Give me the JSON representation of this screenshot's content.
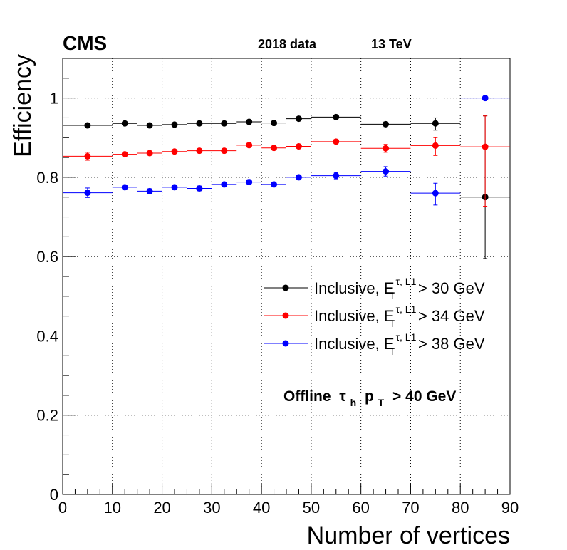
{
  "header": {
    "experiment": "CMS",
    "dataset": "2018 data",
    "energy": "13 TeV"
  },
  "chart_data": {
    "type": "scatter",
    "title": "",
    "xlabel": "Number of vertices",
    "ylabel": "Efficiency",
    "xlim": [
      0,
      90
    ],
    "ylim": [
      0,
      1.1
    ],
    "grid": true,
    "legend_placement": "right",
    "x_ticks": [
      "0",
      "10",
      "20",
      "30",
      "40",
      "50",
      "60",
      "70",
      "80",
      "90"
    ],
    "y_ticks": [
      "0",
      "0.2",
      "0.4",
      "0.6",
      "0.8",
      "1"
    ],
    "annotation": {
      "prefix": "Offline",
      "symbol": "τ",
      "symbol_sub": "h",
      "var": "p",
      "var_sub": "T",
      "cut": "> 40 GeV"
    },
    "series": [
      {
        "name": "Inclusive, E_T^{τ, L1} > 30 GeV",
        "legend_prefix": "Inclusive, E",
        "legend_sub": "T",
        "legend_sup": "τ, L1",
        "legend_suffix": "> 30 GeV",
        "color": "#000000",
        "points": [
          {
            "x": 5,
            "xlo": 0,
            "xhi": 10,
            "y": 0.931,
            "elo": 0.005,
            "ehi": 0.005
          },
          {
            "x": 12.5,
            "xlo": 10,
            "xhi": 15,
            "y": 0.936,
            "elo": 0.004,
            "ehi": 0.004
          },
          {
            "x": 17.5,
            "xlo": 15,
            "xhi": 20,
            "y": 0.931,
            "elo": 0.004,
            "ehi": 0.004
          },
          {
            "x": 22.5,
            "xlo": 20,
            "xhi": 25,
            "y": 0.933,
            "elo": 0.004,
            "ehi": 0.004
          },
          {
            "x": 27.5,
            "xlo": 25,
            "xhi": 30,
            "y": 0.936,
            "elo": 0.004,
            "ehi": 0.004
          },
          {
            "x": 32.5,
            "xlo": 30,
            "xhi": 35,
            "y": 0.936,
            "elo": 0.004,
            "ehi": 0.004
          },
          {
            "x": 37.5,
            "xlo": 35,
            "xhi": 40,
            "y": 0.94,
            "elo": 0.004,
            "ehi": 0.004
          },
          {
            "x": 42.5,
            "xlo": 40,
            "xhi": 45,
            "y": 0.937,
            "elo": 0.004,
            "ehi": 0.004
          },
          {
            "x": 47.5,
            "xlo": 45,
            "xhi": 50,
            "y": 0.948,
            "elo": 0.004,
            "ehi": 0.004
          },
          {
            "x": 55,
            "xlo": 50,
            "xhi": 60,
            "y": 0.952,
            "elo": 0.004,
            "ehi": 0.004
          },
          {
            "x": 65,
            "xlo": 60,
            "xhi": 70,
            "y": 0.934,
            "elo": 0.006,
            "ehi": 0.006
          },
          {
            "x": 75,
            "xlo": 70,
            "xhi": 80,
            "y": 0.936,
            "elo": 0.017,
            "ehi": 0.014
          },
          {
            "x": 85,
            "xlo": 80,
            "xhi": 90,
            "y": 0.75,
            "elo": 0.155,
            "ehi": 0.205
          }
        ]
      },
      {
        "name": "Inclusive, E_T^{τ, L1} > 34 GeV",
        "legend_prefix": "Inclusive, E",
        "legend_sub": "T",
        "legend_sup": "τ, L1",
        "legend_suffix": "> 34 GeV",
        "color": "#ff0000",
        "points": [
          {
            "x": 5,
            "xlo": 0,
            "xhi": 10,
            "y": 0.853,
            "elo": 0.01,
            "ehi": 0.01
          },
          {
            "x": 12.5,
            "xlo": 10,
            "xhi": 15,
            "y": 0.858,
            "elo": 0.005,
            "ehi": 0.005
          },
          {
            "x": 17.5,
            "xlo": 15,
            "xhi": 20,
            "y": 0.861,
            "elo": 0.005,
            "ehi": 0.005
          },
          {
            "x": 22.5,
            "xlo": 20,
            "xhi": 25,
            "y": 0.865,
            "elo": 0.005,
            "ehi": 0.005
          },
          {
            "x": 27.5,
            "xlo": 25,
            "xhi": 30,
            "y": 0.867,
            "elo": 0.005,
            "ehi": 0.005
          },
          {
            "x": 32.5,
            "xlo": 30,
            "xhi": 35,
            "y": 0.867,
            "elo": 0.005,
            "ehi": 0.005
          },
          {
            "x": 37.5,
            "xlo": 35,
            "xhi": 40,
            "y": 0.881,
            "elo": 0.005,
            "ehi": 0.005
          },
          {
            "x": 42.5,
            "xlo": 40,
            "xhi": 45,
            "y": 0.874,
            "elo": 0.005,
            "ehi": 0.005
          },
          {
            "x": 47.5,
            "xlo": 45,
            "xhi": 50,
            "y": 0.878,
            "elo": 0.005,
            "ehi": 0.005
          },
          {
            "x": 55,
            "xlo": 50,
            "xhi": 60,
            "y": 0.89,
            "elo": 0.005,
            "ehi": 0.005
          },
          {
            "x": 65,
            "xlo": 60,
            "xhi": 70,
            "y": 0.873,
            "elo": 0.01,
            "ehi": 0.01
          },
          {
            "x": 75,
            "xlo": 70,
            "xhi": 80,
            "y": 0.88,
            "elo": 0.025,
            "ehi": 0.02
          },
          {
            "x": 85,
            "xlo": 80,
            "xhi": 90,
            "y": 0.877,
            "elo": 0.15,
            "ehi": 0.078
          }
        ]
      },
      {
        "name": "Inclusive, E_T^{τ, L1} > 38 GeV",
        "legend_prefix": "Inclusive, E",
        "legend_sub": "T",
        "legend_sup": "τ, L1",
        "legend_suffix": "> 38 GeV",
        "color": "#0000ff",
        "points": [
          {
            "x": 5,
            "xlo": 0,
            "xhi": 10,
            "y": 0.761,
            "elo": 0.012,
            "ehi": 0.012
          },
          {
            "x": 12.5,
            "xlo": 10,
            "xhi": 15,
            "y": 0.775,
            "elo": 0.006,
            "ehi": 0.006
          },
          {
            "x": 17.5,
            "xlo": 15,
            "xhi": 20,
            "y": 0.765,
            "elo": 0.006,
            "ehi": 0.006
          },
          {
            "x": 22.5,
            "xlo": 20,
            "xhi": 25,
            "y": 0.775,
            "elo": 0.006,
            "ehi": 0.006
          },
          {
            "x": 27.5,
            "xlo": 25,
            "xhi": 30,
            "y": 0.772,
            "elo": 0.006,
            "ehi": 0.006
          },
          {
            "x": 32.5,
            "xlo": 30,
            "xhi": 35,
            "y": 0.782,
            "elo": 0.006,
            "ehi": 0.006
          },
          {
            "x": 37.5,
            "xlo": 35,
            "xhi": 40,
            "y": 0.788,
            "elo": 0.006,
            "ehi": 0.006
          },
          {
            "x": 42.5,
            "xlo": 40,
            "xhi": 45,
            "y": 0.782,
            "elo": 0.006,
            "ehi": 0.006
          },
          {
            "x": 47.5,
            "xlo": 45,
            "xhi": 50,
            "y": 0.8,
            "elo": 0.006,
            "ehi": 0.006
          },
          {
            "x": 55,
            "xlo": 50,
            "xhi": 60,
            "y": 0.804,
            "elo": 0.008,
            "ehi": 0.008
          },
          {
            "x": 65,
            "xlo": 60,
            "xhi": 70,
            "y": 0.815,
            "elo": 0.012,
            "ehi": 0.012
          },
          {
            "x": 75,
            "xlo": 70,
            "xhi": 80,
            "y": 0.76,
            "elo": 0.03,
            "ehi": 0.025
          },
          {
            "x": 85,
            "xlo": 80,
            "xhi": 90,
            "y": 1.0,
            "elo": 0.0,
            "ehi": 0.0
          }
        ]
      }
    ]
  }
}
